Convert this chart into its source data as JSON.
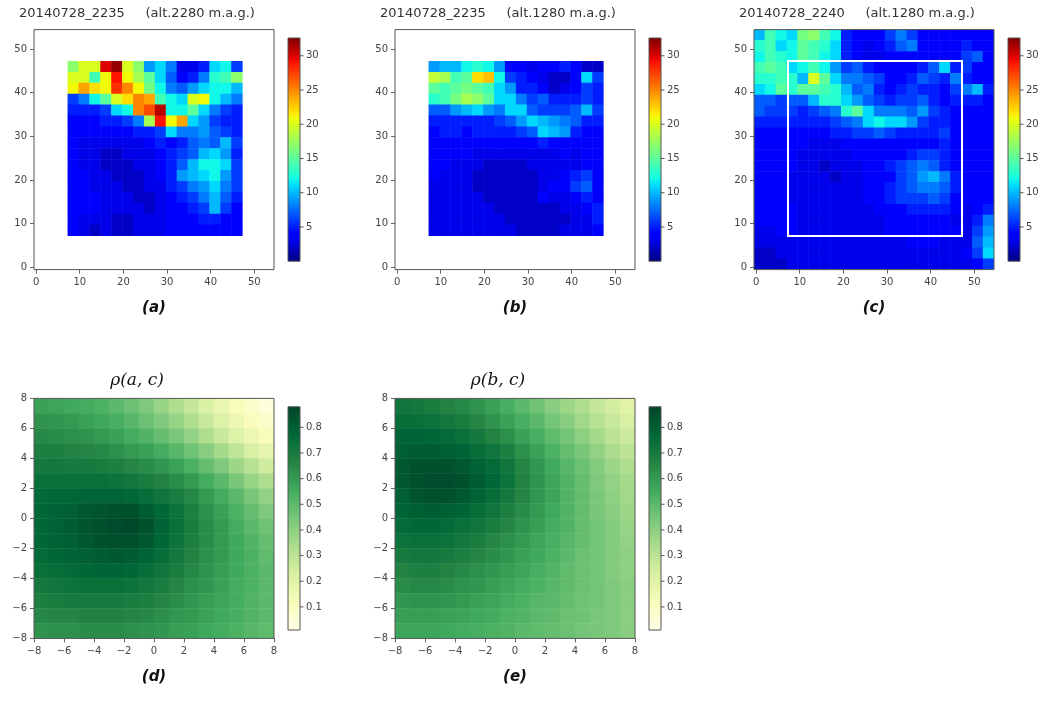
{
  "chart_data": [
    {
      "type": "scatter",
      "marker": "square",
      "title": "20140728_2235     (alt.2280 m.a.g.)",
      "xlabel": "(a)",
      "xlim": [
        -0.5,
        54.5
      ],
      "ylim": [
        -0.5,
        54.5
      ],
      "xticks": [
        0,
        10,
        20,
        30,
        40,
        50
      ],
      "yticks": [
        0,
        10,
        20,
        30,
        40,
        50
      ],
      "clim": [
        0,
        32.6
      ],
      "cticks": [
        5,
        10,
        15,
        20,
        25,
        30
      ],
      "x": [
        8.5,
        11,
        13.5,
        16,
        18.5,
        21,
        23.5,
        26,
        28.5,
        31,
        33.5,
        36,
        38.5,
        41,
        43.5,
        46,
        8.5,
        11,
        13.5,
        16,
        18.5,
        21,
        23.5,
        26,
        28.5,
        31,
        33.5,
        36,
        38.5,
        41,
        43.5,
        46,
        8.5,
        11,
        13.5,
        16,
        18.5,
        21,
        23.5,
        26,
        28.5,
        31,
        33.5,
        36,
        38.5,
        41,
        43.5,
        46,
        8.5,
        11,
        13.5,
        16,
        18.5,
        21,
        23.5,
        26,
        28.5,
        31,
        33.5,
        36,
        38.5,
        41,
        43.5,
        46,
        8.5,
        11,
        13.5,
        16,
        18.5,
        21,
        23.5,
        26,
        28.5,
        31,
        33.5,
        36,
        38.5,
        41,
        43.5,
        46,
        8.5,
        11,
        13.5,
        16,
        18.5,
        21,
        23.5,
        26,
        28.5,
        31,
        33.5,
        36,
        38.5,
        41,
        43.5,
        46,
        8.5,
        11,
        13.5,
        16,
        18.5,
        21,
        23.5,
        26,
        28.5,
        31,
        33.5,
        36,
        38.5,
        41,
        43.5,
        46,
        8.5,
        11,
        13.5,
        16,
        18.5,
        21,
        23.5,
        26,
        28.5,
        31,
        33.5,
        36,
        38.5,
        41,
        43.5,
        46,
        8.5,
        11,
        13.5,
        16,
        18.5,
        21,
        23.5,
        26,
        28.5,
        31,
        33.5,
        36,
        38.5,
        41,
        43.5,
        46,
        8.5,
        11,
        13.5,
        16,
        18.5,
        21,
        23.5,
        26,
        28.5,
        31,
        33.5,
        36,
        38.5,
        41,
        43.5,
        46,
        8.5,
        11,
        13.5,
        16,
        18.5,
        21,
        23.5,
        26,
        28.5,
        31,
        33.5,
        36,
        38.5,
        41,
        43.5,
        46,
        8.5,
        11,
        13.5,
        16,
        18.5,
        21,
        23.5,
        26,
        28.5,
        31,
        33.5,
        36,
        38.5,
        41,
        43.5,
        46,
        8.5,
        11,
        13.5,
        16,
        18.5,
        21,
        23.5,
        26,
        28.5,
        31,
        33.5,
        36,
        38.5,
        41,
        43.5,
        46,
        8.5,
        11,
        13.5,
        16,
        18.5,
        21,
        23.5,
        26,
        28.5,
        31,
        33.5,
        36,
        38.5,
        41,
        43.5,
        46,
        8.5,
        11,
        13.5,
        16,
        18.5,
        21,
        23.5,
        26,
        28.5,
        31,
        33.5,
        36,
        38.5,
        41,
        43.5,
        46,
        8.5,
        11,
        13.5,
        16,
        18.5,
        21,
        23.5,
        26,
        28.5,
        31,
        33.5,
        36,
        38.5,
        41,
        43.5,
        46
      ],
      "values": [
        46,
        46,
        46,
        46,
        46,
        46,
        46,
        46,
        46,
        46,
        46,
        46,
        46,
        46,
        46,
        46,
        43.5,
        43.5,
        43.5,
        43.5,
        43.5,
        43.5,
        43.5,
        43.5,
        43.5,
        43.5,
        43.5,
        43.5,
        43.5,
        43.5,
        43.5,
        43.5,
        41,
        41,
        41,
        41,
        41,
        41,
        41,
        41,
        41,
        41,
        41,
        41,
        41,
        41,
        41,
        41,
        38.5,
        38.5,
        38.5,
        38.5,
        38.5,
        38.5,
        38.5,
        38.5,
        38.5,
        38.5,
        38.5,
        38.5,
        38.5,
        38.5,
        38.5,
        38.5,
        36,
        36,
        36,
        36,
        36,
        36,
        36,
        36,
        36,
        36,
        36,
        36,
        36,
        36,
        36,
        36,
        33.5,
        33.5,
        33.5,
        33.5,
        33.5,
        33.5,
        33.5,
        33.5,
        33.5,
        33.5,
        33.5,
        33.5,
        33.5,
        33.5,
        33.5,
        33.5,
        31,
        31,
        31,
        31,
        31,
        31,
        31,
        31,
        31,
        31,
        31,
        31,
        31,
        31,
        31,
        31,
        28.5,
        28.5,
        28.5,
        28.5,
        28.5,
        28.5,
        28.5,
        28.5,
        28.5,
        28.5,
        28.5,
        28.5,
        28.5,
        28.5,
        28.5,
        28.5,
        26,
        26,
        26,
        26,
        26,
        26,
        26,
        26,
        26,
        26,
        26,
        26,
        26,
        26,
        26,
        26,
        23.5,
        23.5,
        23.5,
        23.5,
        23.5,
        23.5,
        23.5,
        23.5,
        23.5,
        23.5,
        23.5,
        23.5,
        23.5,
        23.5,
        23.5,
        23.5,
        21,
        21,
        21,
        21,
        21,
        21,
        21,
        21,
        21,
        21,
        21,
        21,
        21,
        21,
        21,
        21,
        18.5,
        18.5,
        18.5,
        18.5,
        18.5,
        18.5,
        18.5,
        18.5,
        18.5,
        18.5,
        18.5,
        18.5,
        18.5,
        18.5,
        18.5,
        18.5,
        16,
        16,
        16,
        16,
        16,
        16,
        16,
        16,
        16,
        16,
        16,
        16,
        16,
        16,
        16,
        16,
        13.5,
        13.5,
        13.5,
        13.5,
        13.5,
        13.5,
        13.5,
        13.5,
        13.5,
        13.5,
        13.5,
        13.5,
        13.5,
        13.5,
        13.5,
        13.5,
        11,
        11,
        11,
        11,
        11,
        11,
        11,
        11,
        11,
        11,
        11,
        11,
        11,
        11,
        11,
        11,
        8.5,
        8.5,
        8.5,
        8.5,
        8.5,
        8.5,
        8.5,
        8.5,
        8.5,
        8.5,
        8.5,
        8.5,
        8.5,
        8.5,
        8.5,
        8.5
      ],
      "cvalues": [
        17,
        20,
        20,
        30,
        32,
        20,
        17,
        9,
        11,
        8,
        3,
        3,
        5,
        11,
        12,
        6,
        20,
        20,
        14,
        21,
        29,
        21,
        18,
        15,
        11,
        7,
        4,
        5,
        8,
        13,
        14,
        17,
        21,
        24,
        22,
        21,
        28,
        25,
        21,
        16,
        12,
        8,
        7,
        9,
        11,
        12,
        12,
        10,
        6,
        8,
        12,
        15,
        20,
        22,
        25,
        24,
        14,
        12,
        11,
        20,
        21,
        12,
        10,
        8,
        5,
        5,
        5,
        6,
        11,
        12,
        25,
        27,
        31,
        12,
        12,
        15,
        11,
        8,
        6,
        5,
        4,
        4,
        4,
        5,
        5,
        6,
        8,
        18,
        29,
        21,
        24,
        11,
        9,
        6,
        5,
        5,
        4,
        4,
        4,
        4,
        4,
        4,
        5,
        5,
        6,
        11,
        8,
        8,
        9,
        7,
        6,
        5,
        4,
        3,
        3,
        3,
        3,
        3,
        3,
        4,
        5,
        4,
        5,
        7,
        8,
        7,
        10,
        6,
        4,
        3,
        3,
        2,
        2,
        3,
        3,
        3,
        4,
        5,
        6,
        7,
        10,
        11,
        9,
        5,
        4,
        3,
        3,
        2,
        2,
        2,
        3,
        3,
        4,
        5,
        7,
        10,
        12,
        12,
        11,
        6,
        4,
        4,
        3,
        3,
        2,
        2,
        2,
        3,
        4,
        5,
        9,
        10,
        11,
        12,
        9,
        6,
        4,
        4,
        3,
        3,
        3,
        2,
        2,
        3,
        3,
        5,
        6,
        8,
        9,
        11,
        8,
        6,
        4,
        4,
        4,
        3,
        3,
        3,
        2,
        2,
        3,
        4,
        5,
        6,
        8,
        10,
        7,
        5,
        4,
        4,
        4,
        3,
        3,
        3,
        3,
        2,
        3,
        4,
        4,
        5,
        6,
        10,
        6,
        4,
        4,
        3,
        3,
        3,
        2,
        2,
        3,
        3,
        3,
        4,
        4,
        4,
        5,
        5,
        4,
        4,
        4,
        3,
        2,
        3,
        2,
        2,
        3,
        3,
        3,
        4,
        4,
        4,
        4,
        4,
        4,
        4
      ]
    },
    {
      "type": "scatter",
      "marker": "square",
      "title": "20140728_2235     (alt.1280 m.a.g.)",
      "xlabel": "(b)",
      "xlim": [
        -0.5,
        54.5
      ],
      "ylim": [
        -0.5,
        54.5
      ],
      "xticks": [
        0,
        10,
        20,
        30,
        40,
        50
      ],
      "yticks": [
        0,
        10,
        20,
        30,
        40,
        50
      ],
      "clim": [
        0,
        32.6
      ],
      "cticks": [
        5,
        10,
        15,
        20,
        25,
        30
      ],
      "x": [
        8.5,
        11,
        13.5,
        16,
        18.5,
        21,
        23.5,
        26,
        28.5,
        31,
        33.5,
        36,
        38.5,
        41,
        43.5,
        46,
        8.5,
        11,
        13.5,
        16,
        18.5,
        21,
        23.5,
        26,
        28.5,
        31,
        33.5,
        36,
        38.5,
        41,
        43.5,
        46,
        8.5,
        11,
        13.5,
        16,
        18.5,
        21,
        23.5,
        26,
        28.5,
        31,
        33.5,
        36,
        38.5,
        41,
        43.5,
        46,
        8.5,
        11,
        13.5,
        16,
        18.5,
        21,
        23.5,
        26,
        28.5,
        31,
        33.5,
        36,
        38.5,
        41,
        43.5,
        46,
        8.5,
        11,
        13.5,
        16,
        18.5,
        21,
        23.5,
        26,
        28.5,
        31,
        33.5,
        36,
        38.5,
        41,
        43.5,
        46,
        8.5,
        11,
        13.5,
        16,
        18.5,
        21,
        23.5,
        26,
        28.5,
        31,
        33.5,
        36,
        38.5,
        41,
        43.5,
        46,
        8.5,
        11,
        13.5,
        16,
        18.5,
        21,
        23.5,
        26,
        28.5,
        31,
        33.5,
        36,
        38.5,
        41,
        43.5,
        46,
        8.5,
        11,
        13.5,
        16,
        18.5,
        21,
        23.5,
        26,
        28.5,
        31,
        33.5,
        36,
        38.5,
        41,
        43.5,
        46,
        8.5,
        11,
        13.5,
        16,
        18.5,
        21,
        23.5,
        26,
        28.5,
        31,
        33.5,
        36,
        38.5,
        41,
        43.5,
        46,
        8.5,
        11,
        13.5,
        16,
        18.5,
        21,
        23.5,
        26,
        28.5,
        31,
        33.5,
        36,
        38.5,
        41,
        43.5,
        46,
        8.5,
        11,
        13.5,
        16,
        18.5,
        21,
        23.5,
        26,
        28.5,
        31,
        33.5,
        36,
        38.5,
        41,
        43.5,
        46,
        8.5,
        11,
        13.5,
        16,
        18.5,
        21,
        23.5,
        26,
        28.5,
        31,
        33.5,
        36,
        38.5,
        41,
        43.5,
        46,
        8.5,
        11,
        13.5,
        16,
        18.5,
        21,
        23.5,
        26,
        28.5,
        31,
        33.5,
        36,
        38.5,
        41,
        43.5,
        46,
        8.5,
        11,
        13.5,
        16,
        18.5,
        21,
        23.5,
        26,
        28.5,
        31,
        33.5,
        36,
        38.5,
        41,
        43.5,
        46,
        8.5,
        11,
        13.5,
        16,
        18.5,
        21,
        23.5,
        26,
        28.5,
        31,
        33.5,
        36,
        38.5,
        41,
        43.5,
        46,
        8.5,
        11,
        13.5,
        16,
        18.5,
        21,
        23.5,
        26,
        28.5,
        31,
        33.5,
        36,
        38.5,
        41,
        43.5,
        46
      ],
      "values": [
        46,
        46,
        46,
        46,
        46,
        46,
        46,
        46,
        46,
        46,
        46,
        46,
        46,
        46,
        46,
        46,
        43.5,
        43.5,
        43.5,
        43.5,
        43.5,
        43.5,
        43.5,
        43.5,
        43.5,
        43.5,
        43.5,
        43.5,
        43.5,
        43.5,
        43.5,
        43.5,
        41,
        41,
        41,
        41,
        41,
        41,
        41,
        41,
        41,
        41,
        41,
        41,
        41,
        41,
        41,
        41,
        38.5,
        38.5,
        38.5,
        38.5,
        38.5,
        38.5,
        38.5,
        38.5,
        38.5,
        38.5,
        38.5,
        38.5,
        38.5,
        38.5,
        38.5,
        38.5,
        36,
        36,
        36,
        36,
        36,
        36,
        36,
        36,
        36,
        36,
        36,
        36,
        36,
        36,
        36,
        36,
        33.5,
        33.5,
        33.5,
        33.5,
        33.5,
        33.5,
        33.5,
        33.5,
        33.5,
        33.5,
        33.5,
        33.5,
        33.5,
        33.5,
        33.5,
        33.5,
        31,
        31,
        31,
        31,
        31,
        31,
        31,
        31,
        31,
        31,
        31,
        31,
        31,
        31,
        31,
        31,
        28.5,
        28.5,
        28.5,
        28.5,
        28.5,
        28.5,
        28.5,
        28.5,
        28.5,
        28.5,
        28.5,
        28.5,
        28.5,
        28.5,
        28.5,
        28.5,
        26,
        26,
        26,
        26,
        26,
        26,
        26,
        26,
        26,
        26,
        26,
        26,
        26,
        26,
        26,
        26,
        23.5,
        23.5,
        23.5,
        23.5,
        23.5,
        23.5,
        23.5,
        23.5,
        23.5,
        23.5,
        23.5,
        23.5,
        23.5,
        23.5,
        23.5,
        23.5,
        21,
        21,
        21,
        21,
        21,
        21,
        21,
        21,
        21,
        21,
        21,
        21,
        21,
        21,
        21,
        21,
        18.5,
        18.5,
        18.5,
        18.5,
        18.5,
        18.5,
        18.5,
        18.5,
        18.5,
        18.5,
        18.5,
        18.5,
        18.5,
        18.5,
        18.5,
        18.5,
        16,
        16,
        16,
        16,
        16,
        16,
        16,
        16,
        16,
        16,
        16,
        16,
        16,
        16,
        16,
        16,
        13.5,
        13.5,
        13.5,
        13.5,
        13.5,
        13.5,
        13.5,
        13.5,
        13.5,
        13.5,
        13.5,
        13.5,
        13.5,
        13.5,
        13.5,
        13.5,
        11,
        11,
        11,
        11,
        11,
        11,
        11,
        11,
        11,
        11,
        11,
        11,
        11,
        11,
        11,
        11,
        8.5,
        8.5,
        8.5,
        8.5,
        8.5,
        8.5,
        8.5,
        8.5,
        8.5,
        8.5,
        8.5,
        8.5,
        8.5,
        8.5,
        8.5,
        8.5
      ],
      "cvalues": [
        9,
        10,
        10,
        12,
        13,
        12,
        9,
        4,
        4,
        3,
        4,
        4,
        5,
        4,
        2,
        2,
        19,
        18,
        14,
        15,
        22,
        23,
        12,
        6,
        5,
        4,
        3,
        2,
        2,
        4,
        11,
        6,
        15,
        14,
        15,
        16,
        15,
        14,
        11,
        9,
        5,
        5,
        4,
        2,
        3,
        4,
        6,
        5,
        13,
        14,
        16,
        18,
        17,
        15,
        11,
        11,
        8,
        6,
        7,
        5,
        5,
        5,
        6,
        5,
        7,
        7,
        9,
        10,
        11,
        9,
        8,
        11,
        11,
        7,
        6,
        6,
        6,
        7,
        10,
        6,
        5,
        5,
        5,
        5,
        5,
        5,
        6,
        7,
        9,
        11,
        10,
        9,
        8,
        7,
        5,
        5,
        4,
        5,
        5,
        4,
        5,
        5,
        5,
        5,
        6,
        7,
        11,
        10,
        9,
        5,
        4,
        4,
        4,
        4,
        4,
        4,
        4,
        4,
        4,
        4,
        4,
        4,
        5,
        4,
        4,
        4,
        4,
        4,
        4,
        4,
        4,
        4,
        3,
        3,
        3,
        3,
        3,
        3,
        3,
        3,
        4,
        3,
        4,
        4,
        4,
        4,
        3,
        3,
        3,
        2,
        2,
        2,
        2,
        3,
        3,
        3,
        3,
        3,
        4,
        4,
        4,
        3,
        3,
        3,
        2,
        2,
        2,
        2,
        2,
        2,
        3,
        3,
        4,
        5,
        6,
        4,
        3,
        3,
        3,
        3,
        2,
        2,
        2,
        2,
        2,
        2,
        3,
        4,
        4,
        6,
        7,
        4,
        3,
        3,
        3,
        3,
        3,
        2,
        2,
        2,
        2,
        2,
        4,
        3,
        3,
        4,
        5,
        4,
        3,
        3,
        3,
        3,
        3,
        3,
        2,
        2,
        2,
        2,
        2,
        2,
        3,
        3,
        4,
        5,
        3,
        3,
        3,
        3,
        3,
        3,
        3,
        2,
        2,
        2,
        2,
        2,
        2,
        3,
        3,
        5,
        3,
        3,
        3,
        3,
        3,
        3,
        3,
        3,
        2,
        2,
        2,
        2,
        3,
        3,
        3,
        4
      ]
    },
    {
      "type": "heatmap",
      "title": "20140728_2240     (alt.1280 m.a.g.)",
      "xlabel": "(c)",
      "xlim": [
        -0.5,
        54.5
      ],
      "ylim": [
        -0.5,
        54.5
      ],
      "xticks": [
        0,
        10,
        20,
        30,
        40,
        50
      ],
      "yticks": [
        0,
        10,
        20,
        30,
        40,
        50
      ],
      "clim": [
        0,
        32.6
      ],
      "cticks": [
        5,
        10,
        15,
        20,
        25,
        30
      ],
      "cells": [
        [
          10,
          14,
          12,
          11,
          16,
          17,
          14,
          12,
          5,
          4,
          4,
          4,
          6,
          8,
          6,
          4,
          4,
          4,
          4,
          4,
          4,
          4
        ],
        [
          13,
          14,
          11,
          12,
          15,
          14,
          13,
          11,
          5,
          4,
          3,
          4,
          5,
          7,
          8,
          4,
          4,
          4,
          4,
          5,
          4,
          4
        ],
        [
          12,
          14,
          13,
          12,
          15,
          14,
          12,
          11,
          5,
          4,
          3,
          3,
          4,
          4,
          4,
          4,
          4,
          4,
          4,
          6,
          7,
          4
        ],
        [
          14,
          15,
          14,
          11,
          12,
          14,
          12,
          9,
          6,
          7,
          5,
          4,
          4,
          4,
          4,
          5,
          7,
          11,
          5,
          6,
          4,
          4
        ],
        [
          13,
          13,
          14,
          13,
          10,
          20,
          15,
          11,
          8,
          8,
          7,
          6,
          4,
          4,
          5,
          7,
          6,
          5,
          8,
          5,
          4,
          4
        ],
        [
          11,
          12,
          15,
          13,
          15,
          15,
          14,
          13,
          10,
          7,
          8,
          5,
          4,
          5,
          6,
          5,
          5,
          4,
          6,
          8,
          10,
          5
        ],
        [
          7,
          7,
          6,
          7,
          7,
          10,
          13,
          13,
          11,
          9,
          7,
          6,
          5,
          6,
          6,
          7,
          5,
          4,
          5,
          5,
          5,
          4
        ],
        [
          7,
          6,
          6,
          6,
          5,
          6,
          7,
          8,
          13,
          15,
          11,
          8,
          8,
          8,
          7,
          9,
          6,
          5,
          4,
          4,
          4,
          4
        ],
        [
          5,
          5,
          5,
          5,
          5,
          5,
          5,
          6,
          7,
          8,
          11,
          12,
          11,
          11,
          9,
          6,
          5,
          5,
          4,
          4,
          4,
          4
        ],
        [
          4,
          4,
          4,
          4,
          4,
          4,
          4,
          5,
          5,
          6,
          6,
          7,
          6,
          5,
          5,
          5,
          5,
          6,
          4,
          4,
          4,
          4
        ],
        [
          4,
          4,
          4,
          4,
          4,
          3,
          3,
          3,
          4,
          4,
          4,
          4,
          4,
          4,
          4,
          4,
          4,
          5,
          4,
          4,
          4,
          4
        ],
        [
          4,
          4,
          4,
          4,
          3,
          3,
          3,
          3,
          3,
          4,
          4,
          4,
          4,
          4,
          5,
          6,
          6,
          5,
          4,
          4,
          4,
          4
        ],
        [
          4,
          4,
          4,
          4,
          3,
          3,
          2,
          3,
          3,
          3,
          4,
          4,
          5,
          6,
          7,
          8,
          7,
          5,
          4,
          4,
          4,
          4
        ],
        [
          4,
          4,
          4,
          3,
          3,
          3,
          3,
          2,
          3,
          3,
          4,
          4,
          4,
          6,
          7,
          9,
          10,
          8,
          5,
          4,
          4,
          4
        ],
        [
          4,
          4,
          4,
          3,
          3,
          3,
          3,
          3,
          3,
          3,
          4,
          4,
          5,
          6,
          7,
          8,
          8,
          7,
          5,
          4,
          4,
          4
        ],
        [
          4,
          4,
          4,
          3,
          3,
          3,
          3,
          3,
          3,
          3,
          4,
          4,
          5,
          6,
          6,
          6,
          7,
          6,
          4,
          4,
          4,
          4
        ],
        [
          4,
          4,
          4,
          4,
          3,
          3,
          3,
          3,
          3,
          3,
          3,
          4,
          4,
          4,
          5,
          5,
          5,
          5,
          4,
          3,
          4,
          5
        ],
        [
          4,
          4,
          4,
          4,
          3,
          3,
          3,
          3,
          3,
          3,
          3,
          3,
          4,
          4,
          4,
          4,
          4,
          4,
          3,
          3,
          5,
          8
        ],
        [
          3,
          3,
          4,
          4,
          3,
          3,
          3,
          3,
          3,
          3,
          3,
          3,
          4,
          4,
          4,
          4,
          4,
          4,
          4,
          3,
          6,
          9
        ],
        [
          3,
          3,
          3,
          3,
          3,
          3,
          3,
          3,
          3,
          3,
          3,
          3,
          3,
          3,
          4,
          4,
          4,
          3,
          3,
          3,
          7,
          10
        ],
        [
          2,
          2,
          3,
          3,
          3,
          3,
          3,
          3,
          3,
          3,
          3,
          3,
          3,
          3,
          3,
          3,
          3,
          3,
          3,
          4,
          6,
          11
        ],
        [
          2,
          2,
          2,
          3,
          3,
          3,
          3,
          3,
          3,
          3,
          3,
          3,
          3,
          3,
          3,
          3,
          3,
          3,
          3,
          3,
          4,
          6
        ]
      ]
    },
    {
      "type": "heatmap",
      "title": "ρ(a, c)",
      "xlabel": "(d)",
      "xlim": [
        -8,
        8
      ],
      "ylim": [
        -8,
        8
      ],
      "xticks": [
        {
          "value": -8,
          "label": "−8"
        },
        {
          "value": -6,
          "label": "−6"
        },
        {
          "value": -4,
          "label": "−4"
        },
        {
          "value": -2,
          "label": "−2"
        },
        0,
        2,
        4,
        6,
        8
      ],
      "yticks": [
        {
          "value": -8,
          "label": "−8"
        },
        {
          "value": -6,
          "label": "−6"
        },
        {
          "value": -4,
          "label": "−4"
        },
        {
          "value": -2,
          "label": "−2"
        },
        0,
        2,
        4,
        6,
        8
      ],
      "clim": [
        0.01,
        0.88
      ],
      "cticks": [
        0.1,
        0.2,
        0.3,
        0.4,
        0.5,
        0.6,
        0.7,
        0.8
      ],
      "cells": [
        [
          0.58,
          0.57,
          0.56,
          0.55,
          0.53,
          0.5,
          0.47,
          0.43,
          0.38,
          0.33,
          0.28,
          0.22,
          0.17,
          0.12,
          0.08,
          0.04
        ],
        [
          0.62,
          0.61,
          0.6,
          0.58,
          0.56,
          0.54,
          0.51,
          0.47,
          0.43,
          0.38,
          0.33,
          0.27,
          0.21,
          0.16,
          0.11,
          0.08
        ],
        [
          0.65,
          0.64,
          0.63,
          0.62,
          0.6,
          0.58,
          0.55,
          0.52,
          0.48,
          0.44,
          0.39,
          0.33,
          0.27,
          0.21,
          0.16,
          0.12
        ],
        [
          0.68,
          0.68,
          0.67,
          0.66,
          0.65,
          0.63,
          0.6,
          0.58,
          0.55,
          0.51,
          0.46,
          0.41,
          0.35,
          0.29,
          0.23,
          0.18
        ],
        [
          0.71,
          0.71,
          0.7,
          0.7,
          0.69,
          0.68,
          0.66,
          0.64,
          0.61,
          0.58,
          0.53,
          0.48,
          0.43,
          0.37,
          0.31,
          0.25
        ],
        [
          0.74,
          0.74,
          0.74,
          0.74,
          0.74,
          0.73,
          0.71,
          0.69,
          0.67,
          0.64,
          0.6,
          0.55,
          0.5,
          0.44,
          0.38,
          0.33
        ],
        [
          0.76,
          0.77,
          0.77,
          0.78,
          0.78,
          0.78,
          0.77,
          0.75,
          0.72,
          0.69,
          0.65,
          0.6,
          0.55,
          0.5,
          0.44,
          0.39
        ],
        [
          0.77,
          0.79,
          0.8,
          0.82,
          0.83,
          0.84,
          0.84,
          0.81,
          0.77,
          0.73,
          0.68,
          0.63,
          0.58,
          0.53,
          0.48,
          0.43
        ],
        [
          0.77,
          0.79,
          0.81,
          0.83,
          0.85,
          0.86,
          0.87,
          0.84,
          0.79,
          0.74,
          0.69,
          0.64,
          0.6,
          0.55,
          0.5,
          0.46
        ],
        [
          0.77,
          0.79,
          0.8,
          0.82,
          0.84,
          0.85,
          0.85,
          0.82,
          0.77,
          0.73,
          0.68,
          0.64,
          0.6,
          0.56,
          0.52,
          0.48
        ],
        [
          0.76,
          0.77,
          0.79,
          0.8,
          0.81,
          0.82,
          0.81,
          0.78,
          0.75,
          0.71,
          0.67,
          0.63,
          0.6,
          0.56,
          0.53,
          0.49
        ],
        [
          0.74,
          0.75,
          0.76,
          0.77,
          0.78,
          0.78,
          0.77,
          0.75,
          0.72,
          0.69,
          0.65,
          0.62,
          0.59,
          0.56,
          0.53,
          0.5
        ],
        [
          0.71,
          0.72,
          0.73,
          0.74,
          0.74,
          0.74,
          0.73,
          0.71,
          0.69,
          0.66,
          0.63,
          0.61,
          0.58,
          0.55,
          0.53,
          0.5
        ],
        [
          0.68,
          0.69,
          0.7,
          0.7,
          0.7,
          0.7,
          0.69,
          0.68,
          0.66,
          0.64,
          0.61,
          0.59,
          0.57,
          0.55,
          0.52,
          0.5
        ],
        [
          0.65,
          0.66,
          0.66,
          0.67,
          0.67,
          0.67,
          0.66,
          0.65,
          0.63,
          0.61,
          0.6,
          0.58,
          0.56,
          0.54,
          0.52,
          0.5
        ],
        [
          0.62,
          0.63,
          0.63,
          0.64,
          0.64,
          0.64,
          0.63,
          0.62,
          0.61,
          0.59,
          0.58,
          0.56,
          0.55,
          0.53,
          0.51,
          0.49
        ]
      ]
    },
    {
      "type": "heatmap",
      "title": "ρ(b, c)",
      "xlabel": "(e)",
      "xlim": [
        -8,
        8
      ],
      "ylim": [
        -8,
        8
      ],
      "xticks": [
        {
          "value": -8,
          "label": "−8"
        },
        {
          "value": -6,
          "label": "−6"
        },
        {
          "value": -4,
          "label": "−4"
        },
        {
          "value": -2,
          "label": "−2"
        },
        0,
        2,
        4,
        6,
        8
      ],
      "yticks": [
        {
          "value": -8,
          "label": "−8"
        },
        {
          "value": -6,
          "label": "−6"
        },
        {
          "value": -4,
          "label": "−4"
        },
        {
          "value": -2,
          "label": "−2"
        },
        0,
        2,
        4,
        6,
        8
      ],
      "clim": [
        0.01,
        0.88
      ],
      "cticks": [
        0.1,
        0.2,
        0.3,
        0.4,
        0.5,
        0.6,
        0.7,
        0.8
      ],
      "cells": [
        [
          0.72,
          0.71,
          0.69,
          0.67,
          0.65,
          0.62,
          0.58,
          0.54,
          0.5,
          0.46,
          0.41,
          0.37,
          0.33,
          0.28,
          0.24,
          0.2
        ],
        [
          0.75,
          0.74,
          0.73,
          0.71,
          0.69,
          0.66,
          0.62,
          0.58,
          0.54,
          0.5,
          0.45,
          0.41,
          0.36,
          0.31,
          0.27,
          0.23
        ],
        [
          0.78,
          0.78,
          0.77,
          0.76,
          0.74,
          0.71,
          0.67,
          0.63,
          0.58,
          0.54,
          0.49,
          0.45,
          0.4,
          0.35,
          0.3,
          0.26
        ],
        [
          0.8,
          0.81,
          0.81,
          0.8,
          0.78,
          0.75,
          0.72,
          0.68,
          0.63,
          0.58,
          0.53,
          0.48,
          0.44,
          0.39,
          0.34,
          0.3
        ],
        [
          0.82,
          0.84,
          0.84,
          0.84,
          0.82,
          0.79,
          0.76,
          0.72,
          0.66,
          0.61,
          0.56,
          0.51,
          0.47,
          0.42,
          0.37,
          0.33
        ],
        [
          0.82,
          0.84,
          0.86,
          0.86,
          0.84,
          0.81,
          0.77,
          0.73,
          0.67,
          0.62,
          0.57,
          0.52,
          0.48,
          0.43,
          0.39,
          0.35
        ],
        [
          0.8,
          0.83,
          0.84,
          0.84,
          0.82,
          0.79,
          0.75,
          0.71,
          0.66,
          0.61,
          0.57,
          0.52,
          0.48,
          0.44,
          0.4,
          0.36
        ],
        [
          0.78,
          0.8,
          0.81,
          0.8,
          0.78,
          0.75,
          0.72,
          0.68,
          0.64,
          0.6,
          0.56,
          0.52,
          0.48,
          0.44,
          0.41,
          0.37
        ],
        [
          0.76,
          0.77,
          0.77,
          0.76,
          0.74,
          0.72,
          0.69,
          0.66,
          0.62,
          0.59,
          0.55,
          0.52,
          0.48,
          0.45,
          0.42,
          0.38
        ],
        [
          0.73,
          0.74,
          0.74,
          0.73,
          0.71,
          0.69,
          0.66,
          0.63,
          0.6,
          0.57,
          0.54,
          0.51,
          0.48,
          0.45,
          0.42,
          0.39
        ],
        [
          0.7,
          0.71,
          0.71,
          0.7,
          0.68,
          0.66,
          0.64,
          0.61,
          0.58,
          0.56,
          0.53,
          0.5,
          0.47,
          0.45,
          0.42,
          0.4
        ],
        [
          0.67,
          0.68,
          0.68,
          0.67,
          0.65,
          0.63,
          0.61,
          0.59,
          0.57,
          0.54,
          0.52,
          0.49,
          0.47,
          0.45,
          0.42,
          0.4
        ],
        [
          0.64,
          0.65,
          0.65,
          0.64,
          0.62,
          0.61,
          0.59,
          0.57,
          0.55,
          0.53,
          0.51,
          0.49,
          0.47,
          0.45,
          0.43,
          0.41
        ],
        [
          0.61,
          0.62,
          0.62,
          0.61,
          0.6,
          0.58,
          0.57,
          0.55,
          0.53,
          0.51,
          0.5,
          0.48,
          0.46,
          0.45,
          0.43,
          0.41
        ],
        [
          0.59,
          0.59,
          0.59,
          0.58,
          0.57,
          0.56,
          0.55,
          0.53,
          0.52,
          0.5,
          0.49,
          0.47,
          0.46,
          0.44,
          0.43,
          0.41
        ],
        [
          0.57,
          0.57,
          0.57,
          0.56,
          0.55,
          0.54,
          0.53,
          0.52,
          0.5,
          0.49,
          0.48,
          0.47,
          0.45,
          0.44,
          0.43,
          0.41
        ]
      ]
    }
  ]
}
